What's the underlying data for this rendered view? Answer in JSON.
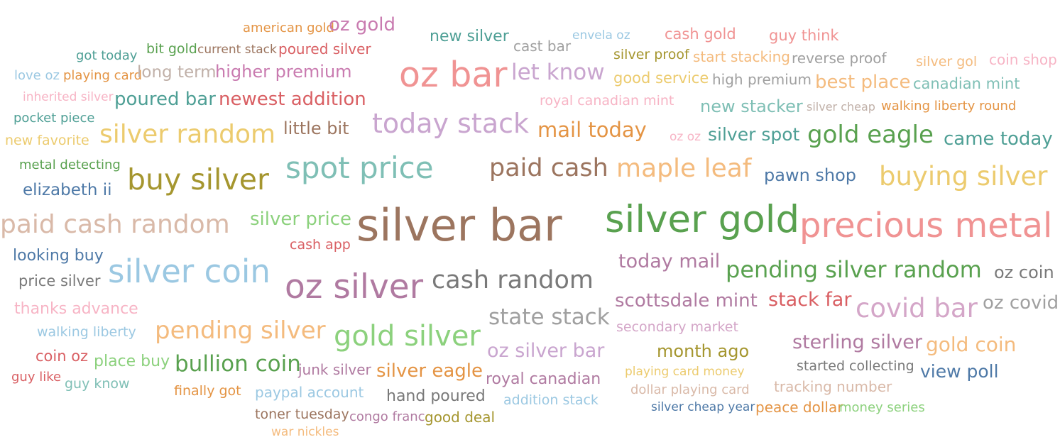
{
  "palette": {
    "orange": "#e49444",
    "teal": "#4e9f95",
    "red_light": "#f09393",
    "green": "#59a14f",
    "olive": "#a5962f",
    "gray": "#a0a0a0",
    "pink_light": "#f7b4c5",
    "lavender": "#c9a5cf",
    "blue": "#4e79a7",
    "tan": "#9c755f",
    "peach": "#f4bb7e",
    "yellow": "#eccb6e",
    "sky": "#9bc8e2"
  },
  "words": [
    {
      "text": "american gold",
      "color": "#e49444"
    },
    {
      "text": "oz gold",
      "color": "#c97bb0"
    },
    {
      "text": "new silver",
      "color": "#4e9f95"
    },
    {
      "text": "envela oz",
      "color": "#9bc8e2"
    },
    {
      "text": "cash gold",
      "color": "#f09393"
    },
    {
      "text": "guy think",
      "color": "#f09393"
    },
    {
      "text": "got today",
      "color": "#4e9f95"
    },
    {
      "text": "bit gold",
      "color": "#59a14f"
    },
    {
      "text": "current stack",
      "color": "#9c755f"
    },
    {
      "text": "poured silver",
      "color": "#d95f63"
    },
    {
      "text": "cast bar",
      "color": "#a0a0a0"
    },
    {
      "text": "silver proof",
      "color": "#a5962f"
    },
    {
      "text": "start stacking",
      "color": "#f4bb7e"
    },
    {
      "text": "reverse proof",
      "color": "#a0a0a0"
    },
    {
      "text": "silver gol",
      "color": "#f4bb7e"
    },
    {
      "text": "coin shop",
      "color": "#f7b4c5"
    },
    {
      "text": "love oz",
      "color": "#9bc8e2"
    },
    {
      "text": "playing card",
      "color": "#e49444"
    },
    {
      "text": "long term",
      "color": "#c0b0a8"
    },
    {
      "text": "higher premium",
      "color": "#c97bb0"
    },
    {
      "text": "oz bar",
      "color": "#f09393"
    },
    {
      "text": "let know",
      "color": "#c9a5cf"
    },
    {
      "text": "good service",
      "color": "#eccb6e"
    },
    {
      "text": "high premium",
      "color": "#a0a0a0"
    },
    {
      "text": "best place",
      "color": "#f4bb7e"
    },
    {
      "text": "canadian mint",
      "color": "#7fbfb5"
    },
    {
      "text": "inherited silver",
      "color": "#f7b4c5"
    },
    {
      "text": "poured bar",
      "color": "#4e9f95"
    },
    {
      "text": "newest addition",
      "color": "#d95f63"
    },
    {
      "text": "royal canadian mint",
      "color": "#f7b4c5"
    },
    {
      "text": "new stacker",
      "color": "#7fbfb5"
    },
    {
      "text": "silver cheap",
      "color": "#c0b0a8"
    },
    {
      "text": "walking liberty round",
      "color": "#e49444"
    },
    {
      "text": "pocket piece",
      "color": "#4e9f95"
    },
    {
      "text": "today stack",
      "color": "#c9a5cf"
    },
    {
      "text": "little bit",
      "color": "#9c755f"
    },
    {
      "text": "mail today",
      "color": "#e49444"
    },
    {
      "text": "oz oz",
      "color": "#f7b4c5"
    },
    {
      "text": "silver spot",
      "color": "#4e9f95"
    },
    {
      "text": "gold eagle",
      "color": "#59a14f"
    },
    {
      "text": "came today",
      "color": "#4e9f95"
    },
    {
      "text": "new favorite",
      "color": "#eccb6e"
    },
    {
      "text": "silver random",
      "color": "#eccb6e"
    },
    {
      "text": "metal detecting",
      "color": "#59a14f"
    },
    {
      "text": "spot price",
      "color": "#7fbfb5"
    },
    {
      "text": "paid cash",
      "color": "#9c755f"
    },
    {
      "text": "maple leaf",
      "color": "#f4bb7e"
    },
    {
      "text": "pawn shop",
      "color": "#4e79a7"
    },
    {
      "text": "buying silver",
      "color": "#eccb6e"
    },
    {
      "text": "buy silver",
      "color": "#a5962f"
    },
    {
      "text": "elizabeth ii",
      "color": "#4e79a7"
    },
    {
      "text": "paid cash random",
      "color": "#d9b9a8"
    },
    {
      "text": "silver price",
      "color": "#8cd17d"
    },
    {
      "text": "silver bar",
      "color": "#9c755f"
    },
    {
      "text": "silver gold",
      "color": "#59a14f"
    },
    {
      "text": "precious metal",
      "color": "#f09393"
    },
    {
      "text": "cash app",
      "color": "#d95f63"
    },
    {
      "text": "looking buy",
      "color": "#4e79a7"
    },
    {
      "text": "today mail",
      "color": "#b07aa1"
    },
    {
      "text": "silver coin",
      "color": "#9bc8e2"
    },
    {
      "text": "pending silver random",
      "color": "#59a14f"
    },
    {
      "text": "oz coin",
      "color": "#797979"
    },
    {
      "text": "price silver",
      "color": "#797979"
    },
    {
      "text": "oz silver",
      "color": "#b07aa1"
    },
    {
      "text": "cash random",
      "color": "#797979"
    },
    {
      "text": "scottsdale mint",
      "color": "#b07aa1"
    },
    {
      "text": "stack far",
      "color": "#d95f63"
    },
    {
      "text": "covid bar",
      "color": "#d4a6c8"
    },
    {
      "text": "oz covid",
      "color": "#a0a0a0"
    },
    {
      "text": "thanks advance",
      "color": "#f7b4c5"
    },
    {
      "text": "state stack",
      "color": "#a0a0a0"
    },
    {
      "text": "walking liberty",
      "color": "#9bc8e2"
    },
    {
      "text": "pending silver",
      "color": "#f4bb7e"
    },
    {
      "text": "secondary market",
      "color": "#d4a6c8"
    },
    {
      "text": "gold silver",
      "color": "#8cd17d"
    },
    {
      "text": "oz silver bar",
      "color": "#c9a5cf"
    },
    {
      "text": "month ago",
      "color": "#a5962f"
    },
    {
      "text": "sterling silver",
      "color": "#b07aa1"
    },
    {
      "text": "gold coin",
      "color": "#f4bb7e"
    },
    {
      "text": "coin oz",
      "color": "#d95f63"
    },
    {
      "text": "place buy",
      "color": "#8cd17d"
    },
    {
      "text": "bullion coin",
      "color": "#59a14f"
    },
    {
      "text": "junk silver",
      "color": "#b07aa1"
    },
    {
      "text": "silver eagle",
      "color": "#e49444"
    },
    {
      "text": "royal canadian",
      "color": "#b07aa1"
    },
    {
      "text": "playing card money",
      "color": "#eccb6e"
    },
    {
      "text": "started collecting",
      "color": "#797979"
    },
    {
      "text": "view poll",
      "color": "#4e79a7"
    },
    {
      "text": "guy like",
      "color": "#d95f63"
    },
    {
      "text": "guy know",
      "color": "#7fbfb5"
    },
    {
      "text": "finally got",
      "color": "#e49444"
    },
    {
      "text": "paypal account",
      "color": "#9bc8e2"
    },
    {
      "text": "hand poured",
      "color": "#797979"
    },
    {
      "text": "dollar playing card",
      "color": "#d9b9a8"
    },
    {
      "text": "tracking number",
      "color": "#d9b9a8"
    },
    {
      "text": "addition stack",
      "color": "#9bc8e2"
    },
    {
      "text": "toner tuesday",
      "color": "#9c755f"
    },
    {
      "text": "congo franc",
      "color": "#b07aa1"
    },
    {
      "text": "good deal",
      "color": "#a5962f"
    },
    {
      "text": "silver cheap year",
      "color": "#4e79a7"
    },
    {
      "text": "peace dollar",
      "color": "#e49444"
    },
    {
      "text": "money series",
      "color": "#8cd17d"
    },
    {
      "text": "war nickles",
      "color": "#f4bb7e"
    }
  ]
}
